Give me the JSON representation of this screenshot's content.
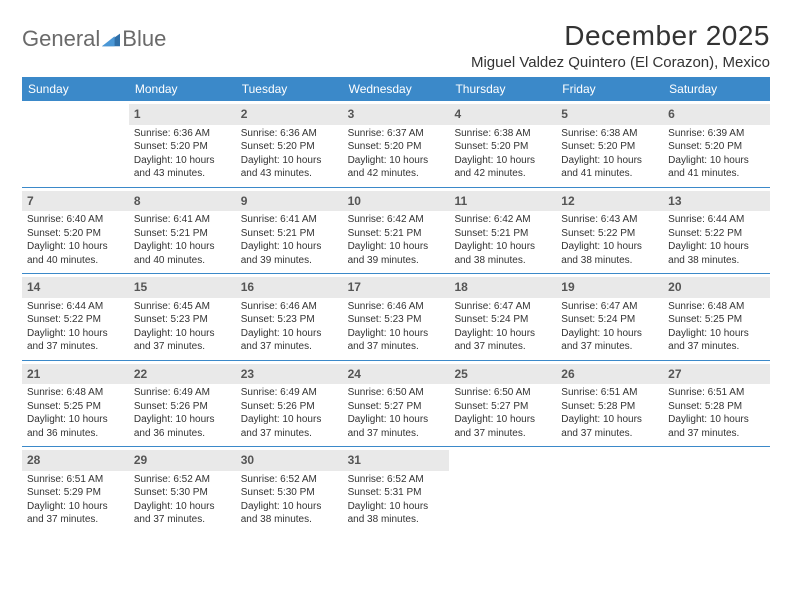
{
  "logo": {
    "text1": "General",
    "text2": "Blue"
  },
  "title": "December 2025",
  "location": "Miguel Valdez Quintero (El Corazon), Mexico",
  "colors": {
    "header_bg": "#3b89c9",
    "daynum_bg": "#e9e9e9",
    "week_divider": "#3b89c9",
    "text": "#333333",
    "logo_gray": "#6a6a6a"
  },
  "weekdays": [
    "Sunday",
    "Monday",
    "Tuesday",
    "Wednesday",
    "Thursday",
    "Friday",
    "Saturday"
  ],
  "weeks": [
    [
      {
        "n": "",
        "sunrise": "",
        "sunset": "",
        "daylight": "",
        "empty": true
      },
      {
        "n": "1",
        "sunrise": "Sunrise: 6:36 AM",
        "sunset": "Sunset: 5:20 PM",
        "daylight": "Daylight: 10 hours and 43 minutes."
      },
      {
        "n": "2",
        "sunrise": "Sunrise: 6:36 AM",
        "sunset": "Sunset: 5:20 PM",
        "daylight": "Daylight: 10 hours and 43 minutes."
      },
      {
        "n": "3",
        "sunrise": "Sunrise: 6:37 AM",
        "sunset": "Sunset: 5:20 PM",
        "daylight": "Daylight: 10 hours and 42 minutes."
      },
      {
        "n": "4",
        "sunrise": "Sunrise: 6:38 AM",
        "sunset": "Sunset: 5:20 PM",
        "daylight": "Daylight: 10 hours and 42 minutes."
      },
      {
        "n": "5",
        "sunrise": "Sunrise: 6:38 AM",
        "sunset": "Sunset: 5:20 PM",
        "daylight": "Daylight: 10 hours and 41 minutes."
      },
      {
        "n": "6",
        "sunrise": "Sunrise: 6:39 AM",
        "sunset": "Sunset: 5:20 PM",
        "daylight": "Daylight: 10 hours and 41 minutes."
      }
    ],
    [
      {
        "n": "7",
        "sunrise": "Sunrise: 6:40 AM",
        "sunset": "Sunset: 5:20 PM",
        "daylight": "Daylight: 10 hours and 40 minutes."
      },
      {
        "n": "8",
        "sunrise": "Sunrise: 6:41 AM",
        "sunset": "Sunset: 5:21 PM",
        "daylight": "Daylight: 10 hours and 40 minutes."
      },
      {
        "n": "9",
        "sunrise": "Sunrise: 6:41 AM",
        "sunset": "Sunset: 5:21 PM",
        "daylight": "Daylight: 10 hours and 39 minutes."
      },
      {
        "n": "10",
        "sunrise": "Sunrise: 6:42 AM",
        "sunset": "Sunset: 5:21 PM",
        "daylight": "Daylight: 10 hours and 39 minutes."
      },
      {
        "n": "11",
        "sunrise": "Sunrise: 6:42 AM",
        "sunset": "Sunset: 5:21 PM",
        "daylight": "Daylight: 10 hours and 38 minutes."
      },
      {
        "n": "12",
        "sunrise": "Sunrise: 6:43 AM",
        "sunset": "Sunset: 5:22 PM",
        "daylight": "Daylight: 10 hours and 38 minutes."
      },
      {
        "n": "13",
        "sunrise": "Sunrise: 6:44 AM",
        "sunset": "Sunset: 5:22 PM",
        "daylight": "Daylight: 10 hours and 38 minutes."
      }
    ],
    [
      {
        "n": "14",
        "sunrise": "Sunrise: 6:44 AM",
        "sunset": "Sunset: 5:22 PM",
        "daylight": "Daylight: 10 hours and 37 minutes."
      },
      {
        "n": "15",
        "sunrise": "Sunrise: 6:45 AM",
        "sunset": "Sunset: 5:23 PM",
        "daylight": "Daylight: 10 hours and 37 minutes."
      },
      {
        "n": "16",
        "sunrise": "Sunrise: 6:46 AM",
        "sunset": "Sunset: 5:23 PM",
        "daylight": "Daylight: 10 hours and 37 minutes."
      },
      {
        "n": "17",
        "sunrise": "Sunrise: 6:46 AM",
        "sunset": "Sunset: 5:23 PM",
        "daylight": "Daylight: 10 hours and 37 minutes."
      },
      {
        "n": "18",
        "sunrise": "Sunrise: 6:47 AM",
        "sunset": "Sunset: 5:24 PM",
        "daylight": "Daylight: 10 hours and 37 minutes."
      },
      {
        "n": "19",
        "sunrise": "Sunrise: 6:47 AM",
        "sunset": "Sunset: 5:24 PM",
        "daylight": "Daylight: 10 hours and 37 minutes."
      },
      {
        "n": "20",
        "sunrise": "Sunrise: 6:48 AM",
        "sunset": "Sunset: 5:25 PM",
        "daylight": "Daylight: 10 hours and 37 minutes."
      }
    ],
    [
      {
        "n": "21",
        "sunrise": "Sunrise: 6:48 AM",
        "sunset": "Sunset: 5:25 PM",
        "daylight": "Daylight: 10 hours and 36 minutes."
      },
      {
        "n": "22",
        "sunrise": "Sunrise: 6:49 AM",
        "sunset": "Sunset: 5:26 PM",
        "daylight": "Daylight: 10 hours and 36 minutes."
      },
      {
        "n": "23",
        "sunrise": "Sunrise: 6:49 AM",
        "sunset": "Sunset: 5:26 PM",
        "daylight": "Daylight: 10 hours and 37 minutes."
      },
      {
        "n": "24",
        "sunrise": "Sunrise: 6:50 AM",
        "sunset": "Sunset: 5:27 PM",
        "daylight": "Daylight: 10 hours and 37 minutes."
      },
      {
        "n": "25",
        "sunrise": "Sunrise: 6:50 AM",
        "sunset": "Sunset: 5:27 PM",
        "daylight": "Daylight: 10 hours and 37 minutes."
      },
      {
        "n": "26",
        "sunrise": "Sunrise: 6:51 AM",
        "sunset": "Sunset: 5:28 PM",
        "daylight": "Daylight: 10 hours and 37 minutes."
      },
      {
        "n": "27",
        "sunrise": "Sunrise: 6:51 AM",
        "sunset": "Sunset: 5:28 PM",
        "daylight": "Daylight: 10 hours and 37 minutes."
      }
    ],
    [
      {
        "n": "28",
        "sunrise": "Sunrise: 6:51 AM",
        "sunset": "Sunset: 5:29 PM",
        "daylight": "Daylight: 10 hours and 37 minutes."
      },
      {
        "n": "29",
        "sunrise": "Sunrise: 6:52 AM",
        "sunset": "Sunset: 5:30 PM",
        "daylight": "Daylight: 10 hours and 37 minutes."
      },
      {
        "n": "30",
        "sunrise": "Sunrise: 6:52 AM",
        "sunset": "Sunset: 5:30 PM",
        "daylight": "Daylight: 10 hours and 38 minutes."
      },
      {
        "n": "31",
        "sunrise": "Sunrise: 6:52 AM",
        "sunset": "Sunset: 5:31 PM",
        "daylight": "Daylight: 10 hours and 38 minutes."
      },
      {
        "n": "",
        "sunrise": "",
        "sunset": "",
        "daylight": "",
        "empty": true
      },
      {
        "n": "",
        "sunrise": "",
        "sunset": "",
        "daylight": "",
        "empty": true
      },
      {
        "n": "",
        "sunrise": "",
        "sunset": "",
        "daylight": "",
        "empty": true
      }
    ]
  ]
}
